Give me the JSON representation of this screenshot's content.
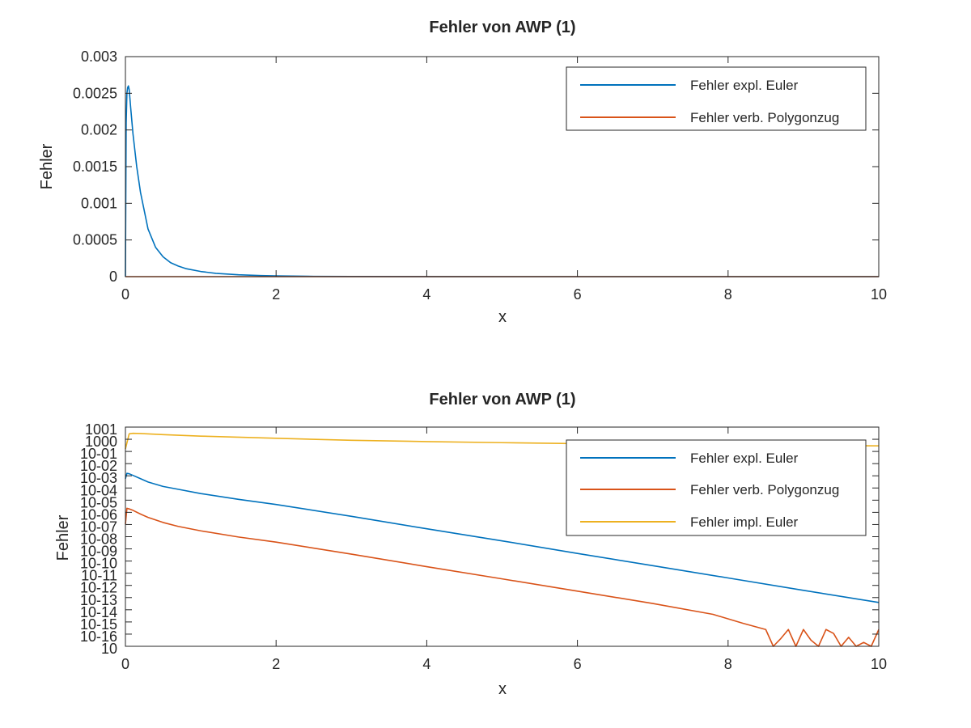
{
  "colors": {
    "series1": "#0072BD",
    "series2": "#D95319",
    "series3": "#EDB120",
    "axis": "#262626",
    "background": "#ffffff"
  },
  "chart_data": [
    {
      "type": "line",
      "title": "Fehler von AWP (1)",
      "xlabel": "x",
      "ylabel": "Fehler",
      "xlim": [
        0,
        10
      ],
      "ylim": [
        0,
        0.003
      ],
      "yscale": "linear",
      "grid": false,
      "legend_position": "top-right",
      "x_ticks": [
        "0",
        "2",
        "4",
        "6",
        "8",
        "10"
      ],
      "y_ticks": [
        "0",
        "0.0005",
        "0.001",
        "0.0015",
        "0.002",
        "0.0025",
        "0.003"
      ],
      "series": [
        {
          "name": "Fehler expl. Euler",
          "color": "#0072BD",
          "x": [
            0,
            0.005,
            0.01,
            0.02,
            0.03,
            0.04,
            0.05,
            0.07,
            0.1,
            0.15,
            0.2,
            0.3,
            0.4,
            0.5,
            0.6,
            0.7,
            0.8,
            1.0,
            1.2,
            1.5,
            1.8,
            2.0,
            2.5,
            3,
            4,
            6,
            8,
            10
          ],
          "y": [
            0,
            0.0011,
            0.0021,
            0.0025,
            0.00258,
            0.0026,
            0.00255,
            0.0023,
            0.00195,
            0.0015,
            0.00115,
            0.00065,
            0.0004,
            0.00027,
            0.00019,
            0.000145,
            0.00011,
            7e-05,
            4.5e-05,
            2.5e-05,
            1.4e-05,
            1e-05,
            4e-06,
            1.5e-06,
            2e-07,
            0,
            0,
            0
          ]
        },
        {
          "name": "Fehler verb. Polygonzug",
          "color": "#D95319",
          "x": [
            0,
            10
          ],
          "y": [
            0,
            0
          ]
        }
      ]
    },
    {
      "type": "line",
      "title": "Fehler von AWP (1)",
      "xlabel": "x",
      "ylabel": "Fehler",
      "xlim": [
        0,
        10
      ],
      "ylim": [
        1e-16,
        10
      ],
      "yscale": "log",
      "grid": false,
      "legend_position": "top-right",
      "x_ticks": [
        "0",
        "2",
        "4",
        "6",
        "8",
        "10"
      ],
      "y_ticks": [
        "10",
        "10-16",
        "10-15",
        "10-14",
        "10-13",
        "10-12",
        "10-11",
        "10-10",
        "10-09",
        "10-08",
        "10-07",
        "10-06",
        "10-05",
        "10-04",
        "10-03",
        "10-02",
        "10-01",
        "1000",
        "1001"
      ],
      "series": [
        {
          "name": "Fehler expl. Euler",
          "color": "#0072BD",
          "x": [
            0,
            0.02,
            0.05,
            0.1,
            0.2,
            0.3,
            0.5,
            0.7,
            1.0,
            1.5,
            2,
            3,
            4,
            5,
            6,
            7,
            8,
            9,
            10
          ],
          "y": [
            0.001,
            0.0026,
            0.0024,
            0.0018,
            0.001,
            0.00055,
            0.00025,
            0.00015,
            7e-05,
            2.5e-05,
            1e-05,
            1.2e-06,
            1.3e-07,
            1.5e-08,
            1.6e-09,
            1.8e-10,
            2e-11,
            2.2e-12,
            2.5e-13
          ]
        },
        {
          "name": "Fehler verb. Polygonzug",
          "color": "#D95319",
          "x": [
            0,
            0.02,
            0.05,
            0.1,
            0.2,
            0.3,
            0.5,
            0.7,
            1.0,
            1.5,
            2,
            3,
            4,
            5,
            6,
            7,
            7.8,
            8.2,
            8.5,
            8.6,
            8.7,
            8.8,
            8.9,
            9.0,
            9.1,
            9.2,
            9.3,
            9.4,
            9.5,
            9.6,
            9.7,
            9.8,
            9.9,
            10
          ],
          "y": [
            3e-07,
            5e-06,
            4.5e-06,
            3.5e-06,
            1.8e-06,
            1e-06,
            4e-07,
            2e-07,
            9e-08,
            3e-08,
            1.2e-08,
            1.4e-09,
            1.5e-10,
            1.7e-11,
            1.9e-12,
            2.1e-13,
            3e-14,
            6e-15,
            2e-15,
            1e-16,
            4e-16,
            2e-15,
            1e-16,
            2e-15,
            3e-16,
            1e-16,
            2e-15,
            1e-15,
            1e-16,
            5e-16,
            1e-16,
            2e-16,
            1e-16,
            2e-15
          ]
        },
        {
          "name": "Fehler impl. Euler",
          "color": "#EDB120",
          "x": [
            0,
            0.05,
            0.1,
            0.2,
            0.5,
            1,
            2,
            3,
            4,
            5,
            6,
            7,
            8,
            9,
            10
          ],
          "y": [
            0.2,
            3.0,
            3.3,
            3.2,
            2.6,
            2.0,
            1.35,
            0.95,
            0.75,
            0.62,
            0.52,
            0.46,
            0.42,
            0.38,
            0.35
          ]
        }
      ]
    }
  ]
}
